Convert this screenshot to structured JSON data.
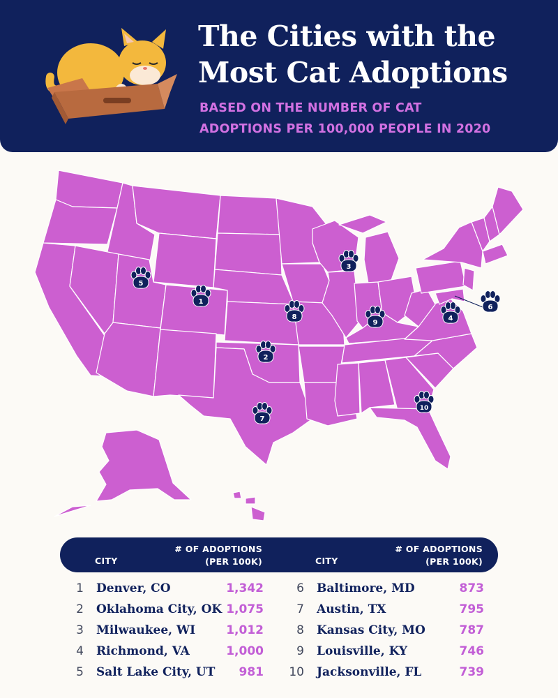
{
  "header": {
    "title_line1": "The Cities with the",
    "title_line2": "Most Cat Adoptions",
    "subtitle_line1": "BASED ON THE NUMBER OF CAT",
    "subtitle_line2": "ADOPTIONS PER 100,000 PEOPLE IN 2020"
  },
  "colors": {
    "navy": "#10215c",
    "map_fill": "#cc5fd0",
    "accent_text": "#d271e2",
    "background": "#fcfaf6"
  },
  "map": {
    "markers": [
      {
        "rank": "1",
        "city": "Denver, CO"
      },
      {
        "rank": "2",
        "city": "Oklahoma City, OK"
      },
      {
        "rank": "3",
        "city": "Milwaukee, WI"
      },
      {
        "rank": "4",
        "city": "Richmond, VA"
      },
      {
        "rank": "5",
        "city": "Salt Lake City, UT"
      },
      {
        "rank": "6",
        "city": "Baltimore, MD"
      },
      {
        "rank": "7",
        "city": "Austin, TX"
      },
      {
        "rank": "8",
        "city": "Kansas City, MO"
      },
      {
        "rank": "9",
        "city": "Louisville, KY"
      },
      {
        "rank": "10",
        "city": "Jacksonville, FL"
      }
    ]
  },
  "table": {
    "col_city": "CITY",
    "col_adoptions_line1": "# OF ADOPTIONS",
    "col_adoptions_line2": "(PER 100K)",
    "rows": [
      {
        "rank": "1",
        "city": "Denver, CO",
        "value": "1,342"
      },
      {
        "rank": "2",
        "city": "Oklahoma City, OK",
        "value": "1,075"
      },
      {
        "rank": "3",
        "city": "Milwaukee, WI",
        "value": "1,012"
      },
      {
        "rank": "4",
        "city": "Richmond, VA",
        "value": "1,000"
      },
      {
        "rank": "5",
        "city": "Salt Lake City, UT",
        "value": "981"
      },
      {
        "rank": "6",
        "city": "Baltimore, MD",
        "value": "873"
      },
      {
        "rank": "7",
        "city": "Austin, TX",
        "value": "795"
      },
      {
        "rank": "8",
        "city": "Kansas City, MO",
        "value": "787"
      },
      {
        "rank": "9",
        "city": "Louisville, KY",
        "value": "746"
      },
      {
        "rank": "10",
        "city": "Jacksonville, FL",
        "value": "739"
      }
    ]
  }
}
